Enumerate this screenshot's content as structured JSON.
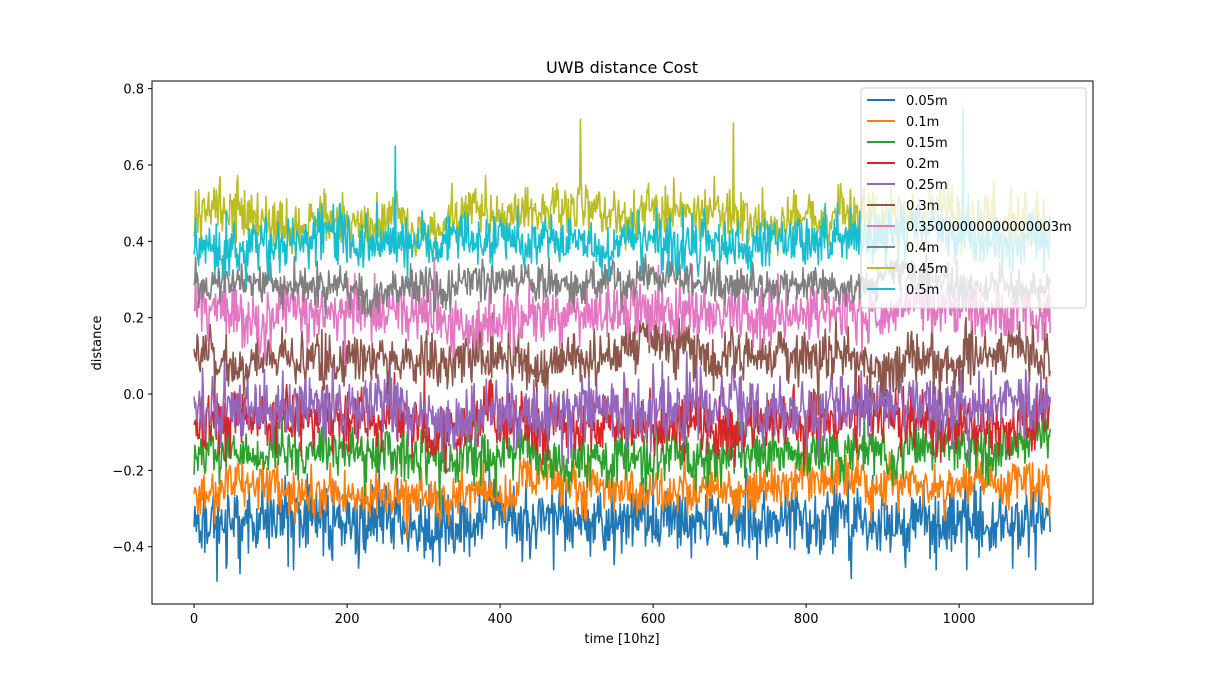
{
  "chart_data": {
    "type": "line",
    "title": "UWB distance Cost",
    "xlabel": "time [10hz]",
    "ylabel": "distance",
    "xlim": [
      -55,
      1175
    ],
    "ylim": [
      -0.55,
      0.82
    ],
    "xticks": [
      0,
      200,
      400,
      600,
      800,
      1000
    ],
    "xtick_labels": [
      "0",
      "200",
      "400",
      "600",
      "800",
      "1000"
    ],
    "yticks": [
      -0.4,
      -0.2,
      0.0,
      0.2,
      0.4,
      0.6,
      0.8
    ],
    "ytick_labels": [
      "−0.4",
      "−0.2",
      "0.0",
      "0.2",
      "0.4",
      "0.6",
      "0.8"
    ],
    "n_points": 1120,
    "grid": false,
    "legend_position": "upper right",
    "series": [
      {
        "name": "0.05m",
        "color": "#1f77b4",
        "mean": -0.33,
        "noise": 0.045,
        "spikes": [
          [
            30,
            -0.49
          ],
          [
            60,
            -0.47
          ],
          [
            130,
            -0.46
          ],
          [
            470,
            -0.46
          ],
          [
            970,
            -0.46
          ],
          [
            1010,
            -0.46
          ],
          [
            1100,
            -0.46
          ]
        ]
      },
      {
        "name": "0.1m",
        "color": "#ff7f0e",
        "mean": -0.25,
        "noise": 0.03,
        "spikes": [
          [
            278,
            -0.38
          ],
          [
            1118,
            -0.32
          ]
        ]
      },
      {
        "name": "0.15m",
        "color": "#2ca02c",
        "mean": -0.16,
        "noise": 0.035,
        "spikes": []
      },
      {
        "name": "0.2m",
        "color": "#d62728",
        "mean": -0.08,
        "noise": 0.04,
        "spikes": []
      },
      {
        "name": "0.25m",
        "color": "#9467bd",
        "mean": -0.04,
        "noise": 0.045,
        "spikes": []
      },
      {
        "name": "0.3m",
        "color": "#8c564b",
        "mean": 0.1,
        "noise": 0.035,
        "spikes": []
      },
      {
        "name": "0.35000000000000003m",
        "color": "#e377c2",
        "mean": 0.21,
        "noise": 0.04,
        "spikes": []
      },
      {
        "name": "0.4m",
        "color": "#7f7f7f",
        "mean": 0.29,
        "noise": 0.025,
        "spikes": []
      },
      {
        "name": "0.45m",
        "color": "#bcbd22",
        "mean": 0.46,
        "noise": 0.035,
        "spikes": [
          [
            505,
            0.72
          ],
          [
            705,
            0.71
          ],
          [
            680,
            0.57
          ]
        ]
      },
      {
        "name": "0.5m",
        "color": "#17becf",
        "mean": 0.4,
        "noise": 0.035,
        "spikes": [
          [
            263,
            0.65
          ],
          [
            1005,
            0.75
          ]
        ]
      }
    ]
  }
}
